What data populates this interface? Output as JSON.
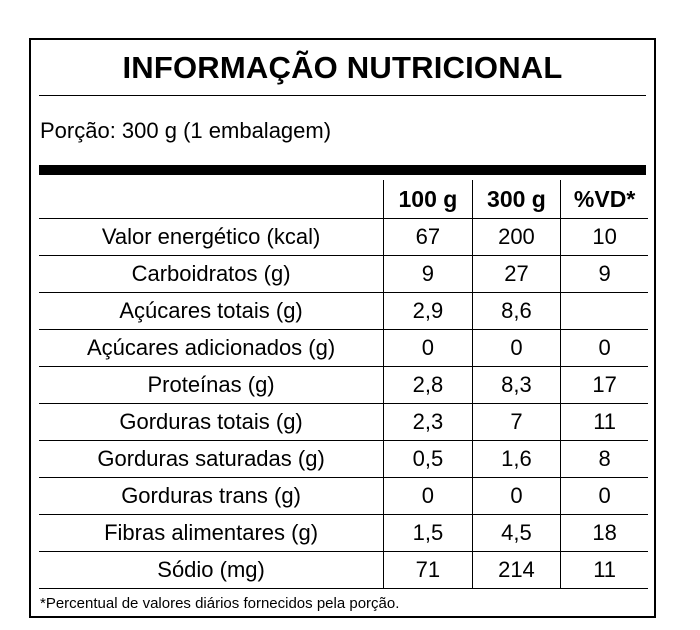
{
  "title": "INFORMAÇÃO NUTRICIONAL",
  "serving": "Porção: 300 g (1 embalagem)",
  "columns": [
    "100 g",
    "300 g",
    "%VD*"
  ],
  "rows": [
    {
      "name": "Valor energético (kcal)",
      "indent": 0,
      "per100": "67",
      "per300": "200",
      "vd": "10"
    },
    {
      "name": "Carboidratos (g)",
      "indent": 0,
      "per100": "9",
      "per300": "27",
      "vd": "9"
    },
    {
      "name": "Açúcares totais (g)",
      "indent": 1,
      "per100": "2,9",
      "per300": "8,6",
      "vd": ""
    },
    {
      "name": "Açúcares adicionados (g)",
      "indent": 2,
      "per100": "0",
      "per300": "0",
      "vd": "0"
    },
    {
      "name": "Proteínas (g)",
      "indent": 0,
      "per100": "2,8",
      "per300": "8,3",
      "vd": "17"
    },
    {
      "name": "Gorduras totais (g)",
      "indent": 0,
      "per100": "2,3",
      "per300": "7",
      "vd": "11"
    },
    {
      "name": "Gorduras saturadas (g)",
      "indent": 1,
      "per100": "0,5",
      "per300": "1,6",
      "vd": "8"
    },
    {
      "name": "Gorduras trans (g)",
      "indent": 1,
      "per100": "0",
      "per300": "0",
      "vd": "0"
    },
    {
      "name": "Fibras alimentares (g)",
      "indent": 0,
      "per100": "1,5",
      "per300": "4,5",
      "vd": "18"
    },
    {
      "name": "Sódio (mg)",
      "indent": 0,
      "per100": "71",
      "per300": "214",
      "vd": "11"
    }
  ],
  "footnote": "*Percentual de valores diários fornecidos pela porção."
}
